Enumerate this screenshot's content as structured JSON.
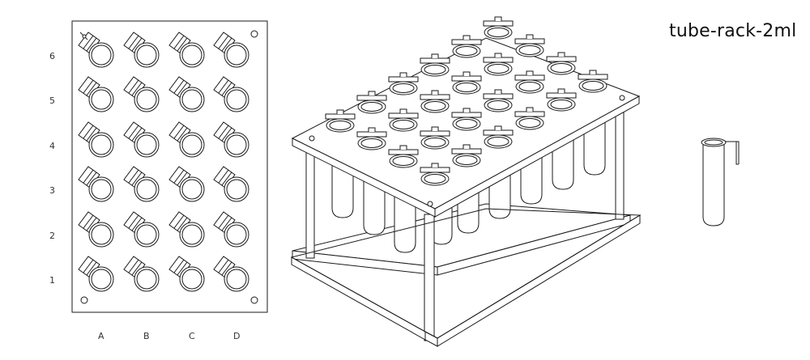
{
  "title": "tube-rack-2ml",
  "grid": {
    "columns": [
      "A",
      "B",
      "C",
      "D"
    ],
    "rows": [
      "6",
      "5",
      "4",
      "3",
      "2",
      "1"
    ]
  },
  "illustrations": [
    "top-view-plan",
    "isometric-rack",
    "single-tube"
  ]
}
